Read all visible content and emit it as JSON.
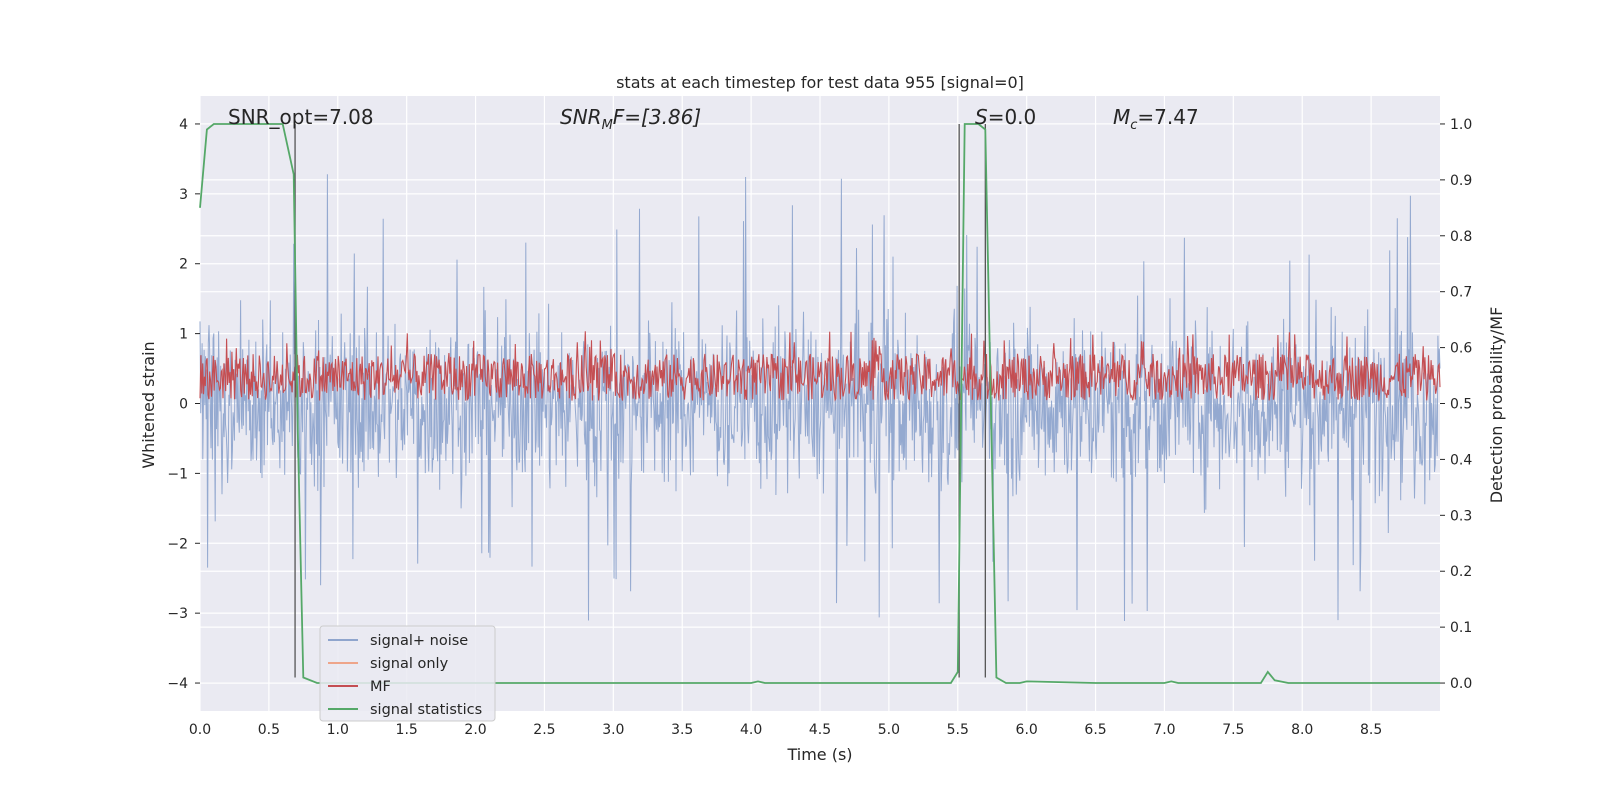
{
  "chart_data": {
    "type": "line",
    "title": "stats at each timestep for test data 955 [signal=0]",
    "xlabel": "Time (s)",
    "ylabel_left": "Whitened strain",
    "ylabel_right": "Detection probability/MF",
    "xlim": [
      0.0,
      9.0
    ],
    "ylim_left": [
      -4.4,
      4.4
    ],
    "ylim_right": [
      -0.05,
      1.05
    ],
    "x_ticks": [
      "0.0",
      "0.5",
      "1.0",
      "1.5",
      "2.0",
      "2.5",
      "3.0",
      "3.5",
      "4.0",
      "4.5",
      "5.0",
      "5.5",
      "6.0",
      "6.5",
      "7.0",
      "7.5",
      "8.0",
      "8.5"
    ],
    "y_ticks_left": [
      "4",
      "3",
      "2",
      "1",
      "0",
      "−1",
      "−2",
      "−3",
      "−4"
    ],
    "y_ticks_right": [
      "1.0",
      "0.9",
      "0.8",
      "0.7",
      "0.6",
      "0.5",
      "0.4",
      "0.3",
      "0.2",
      "0.1",
      "0.0"
    ],
    "grid": true,
    "legend_position": "lower-left",
    "annotations": {
      "snr_opt": "SNR_opt=7.08",
      "snr_mf_base": "SNR",
      "snr_mf_sub": "M",
      "snr_mf_tail": "F=[3.86]",
      "s_stat_base": "S",
      "s_stat_tail": "=0.0",
      "mc_base": "M",
      "mc_sub": "c",
      "mc_tail": "=7.47"
    },
    "series": [
      {
        "name": "signal+ noise",
        "color": "#8fa5cd",
        "axis": "left",
        "description_values": "noise band roughly -3 to 4 whitened strain"
      },
      {
        "name": "signal only",
        "color": "#eea58a",
        "axis": "left",
        "values": []
      },
      {
        "name": "MF",
        "color": "#c44e52",
        "axis": "right",
        "band": [
          0.5,
          0.62
        ]
      },
      {
        "name": "signal statistics",
        "color": "#55a868",
        "axis": "right",
        "x": [
          0.0,
          0.05,
          0.1,
          0.2,
          0.4,
          0.6,
          0.68,
          0.71,
          0.75,
          0.85,
          1.0,
          2.0,
          3.0,
          4.0,
          4.05,
          4.1,
          5.0,
          5.45,
          5.5,
          5.55,
          5.6,
          5.65,
          5.7,
          5.78,
          5.85,
          5.95,
          6.0,
          6.5,
          7.0,
          7.05,
          7.1,
          7.7,
          7.75,
          7.8,
          7.9,
          8.0,
          9.0
        ],
        "y": [
          0.85,
          0.99,
          1.0,
          1.0,
          1.0,
          1.0,
          0.91,
          0.45,
          0.01,
          0.0,
          0.0,
          0.0,
          0.0,
          0.0,
          0.003,
          0.0,
          0.0,
          0.0,
          0.02,
          1.0,
          1.0,
          1.0,
          0.99,
          0.01,
          0.0,
          0.0,
          0.003,
          0.0,
          0.0,
          0.003,
          0.0,
          0.0,
          0.02,
          0.005,
          0.0,
          0.0,
          0.0
        ]
      }
    ],
    "vertical_markers_x": [
      0.69,
      5.51,
      5.7
    ],
    "colors": {
      "plot_bg": "#eaeaf2",
      "grid": "#ffffff",
      "noise": "#8fa5cd",
      "signal_only": "#eea58a",
      "mf": "#c44e52",
      "stats": "#55a868",
      "marker": "#555555"
    }
  }
}
